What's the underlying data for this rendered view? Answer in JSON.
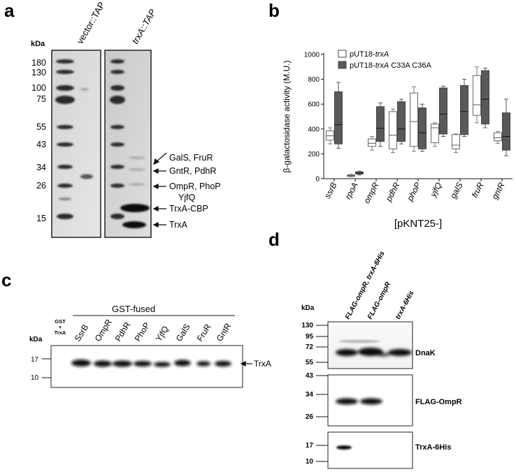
{
  "panels": {
    "a": {
      "letter": "a",
      "kda_label": "kDa",
      "markers": [
        "180",
        "130",
        "100",
        "75",
        "55",
        "43",
        "34",
        "26",
        "15"
      ],
      "lane_labels": [
        "vector::TAP",
        "trxA::TAP"
      ],
      "band_labels": [
        "GalS, FruR",
        "GntR, PdhR",
        "OmpR, PhoP",
        "YjfQ",
        "TrxA-CBP",
        "TrxA"
      ]
    },
    "b": {
      "letter": "b",
      "chart_data": {
        "type": "box",
        "ylabel": "β-galactosidase activity (M.U.)",
        "xlabel": "[pKNT25-]",
        "ylim": [
          0,
          1000
        ],
        "yticks": [
          0,
          200,
          400,
          600,
          800,
          1000
        ],
        "categories": [
          "ssrB",
          "rpoA",
          "ompR",
          "pdhR",
          "phoP",
          "yjfQ",
          "galS",
          "fruR",
          "gntR"
        ],
        "series": [
          {
            "name": "pUT18-trxA",
            "color": "#ffffff",
            "boxes": [
              {
                "min": 280,
                "q1": 310,
                "median": 345,
                "q3": 385,
                "max": 410
              },
              {
                "min": 15,
                "q1": 18,
                "median": 25,
                "q3": 30,
                "max": 35
              },
              {
                "min": 230,
                "q1": 260,
                "median": 285,
                "q3": 320,
                "max": 340
              },
              {
                "min": 210,
                "q1": 240,
                "median": 350,
                "q3": 540,
                "max": 560
              },
              {
                "min": 220,
                "q1": 260,
                "median": 460,
                "q3": 690,
                "max": 740
              },
              {
                "min": 260,
                "q1": 290,
                "median": 410,
                "q3": 440,
                "max": 450
              },
              {
                "min": 210,
                "q1": 240,
                "median": 270,
                "q3": 355,
                "max": 360
              },
              {
                "min": 450,
                "q1": 510,
                "median": 595,
                "q3": 830,
                "max": 900
              },
              {
                "min": 285,
                "q1": 305,
                "median": 330,
                "q3": 370,
                "max": 380
              }
            ]
          },
          {
            "name": "pUT18-trxA C33A C36A",
            "color": "#595959",
            "boxes": [
              {
                "min": 245,
                "q1": 280,
                "median": 435,
                "q3": 700,
                "max": 775
              },
              {
                "min": 30,
                "q1": 38,
                "median": 45,
                "q3": 55,
                "max": 60
              },
              {
                "min": 260,
                "q1": 300,
                "median": 405,
                "q3": 580,
                "max": 610
              },
              {
                "min": 280,
                "q1": 300,
                "median": 400,
                "q3": 620,
                "max": 640
              },
              {
                "min": 220,
                "q1": 240,
                "median": 370,
                "q3": 570,
                "max": 600
              },
              {
                "min": 340,
                "q1": 360,
                "median": 520,
                "q3": 730,
                "max": 745
              },
              {
                "min": 340,
                "q1": 355,
                "median": 540,
                "q3": 750,
                "max": 800
              },
              {
                "min": 410,
                "q1": 440,
                "median": 640,
                "q3": 870,
                "max": 890
              },
              {
                "min": 185,
                "q1": 230,
                "median": 340,
                "q3": 530,
                "max": 640
              }
            ]
          }
        ],
        "legend_location": "top-left"
      }
    },
    "c": {
      "letter": "c",
      "group_label": "GST-fused",
      "kda_label": "kDa",
      "control_lane": [
        "GST",
        "+",
        "TrxA"
      ],
      "lanes": [
        "SsrB",
        "OmpR",
        "PdhR",
        "PhoP",
        "YjfQ",
        "GalS",
        "FruR",
        "GntR"
      ],
      "markers": [
        "17",
        "10"
      ],
      "band_label": "TrxA"
    },
    "d": {
      "letter": "d",
      "kda_label": "kDa",
      "lane_labels": [
        "FLAG-ompR, trxA-6His",
        "FLAG-ompR",
        "trxA-6His"
      ],
      "blots": [
        {
          "label": "DnaK",
          "markers": [
            "130",
            "95",
            "72",
            "55"
          ]
        },
        {
          "label": "FLAG-OmpR",
          "markers": [
            "43",
            "34",
            "26"
          ]
        },
        {
          "label": "TrxA-6His",
          "markers": [
            "17",
            "10"
          ]
        }
      ]
    }
  }
}
